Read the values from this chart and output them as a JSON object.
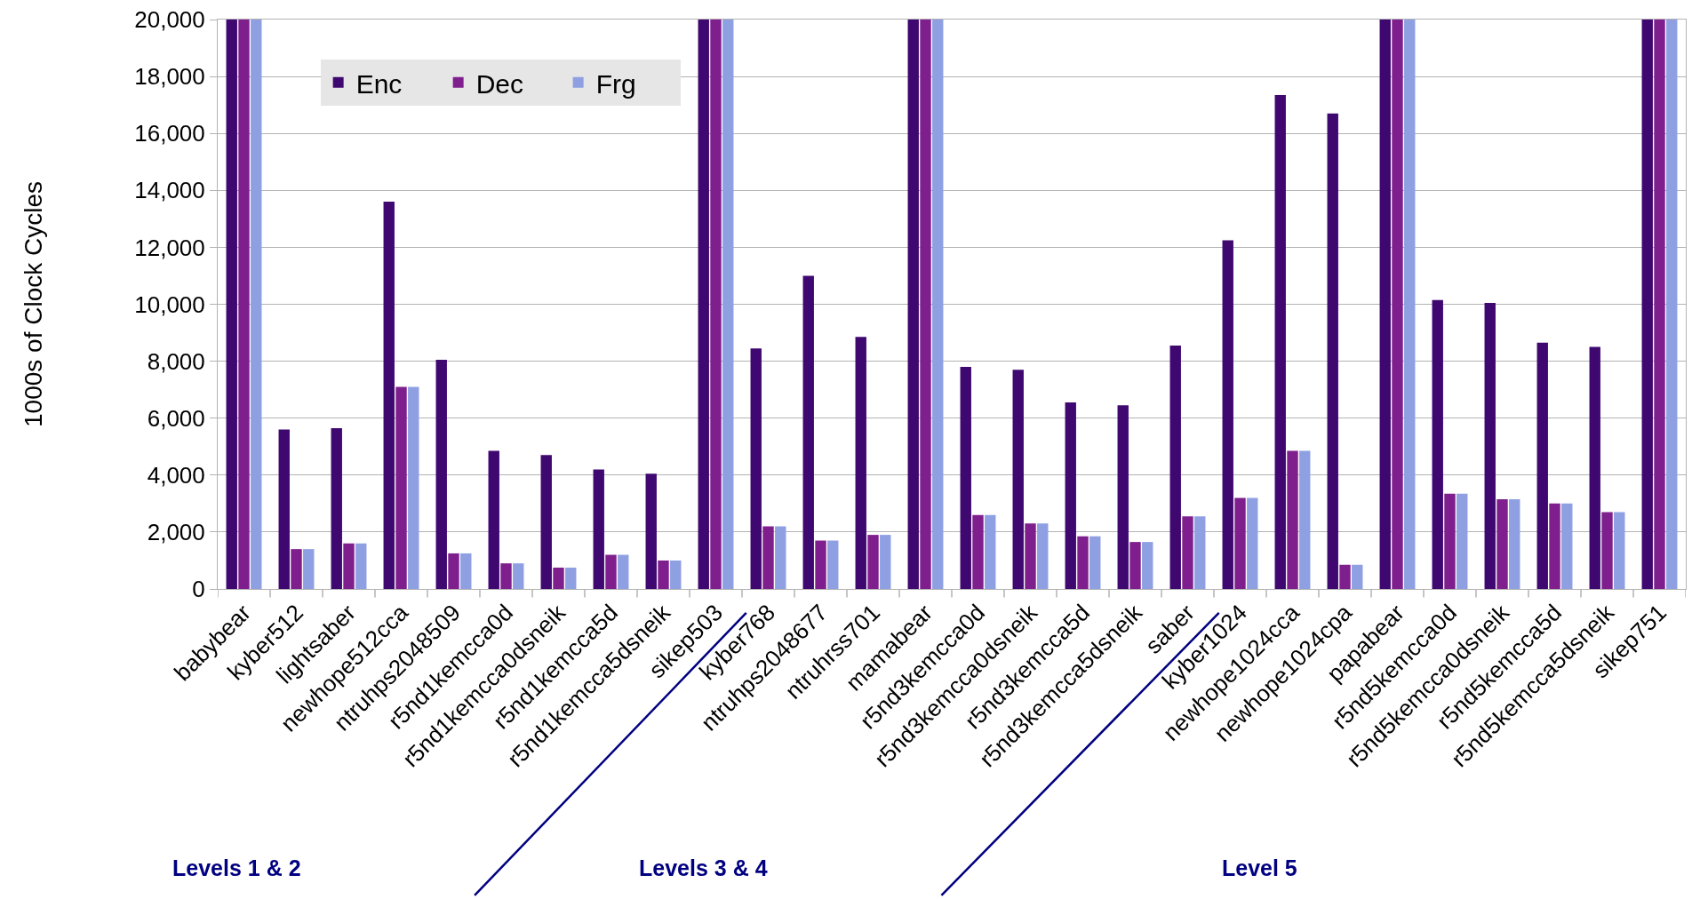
{
  "chart_data": {
    "type": "bar",
    "ylabel": "1000s of Clock Cycles",
    "categories": [
      "babybear",
      "kyber512",
      "lightsaber",
      "newhope512cca",
      "ntruhps2048509",
      "r5nd1kemcca0d",
      "r5nd1kemcca0dsneik",
      "r5nd1kemcca5d",
      "r5nd1kemcca5dsneik",
      "sikep503",
      "kyber768",
      "ntruhps2048677",
      "ntruhrss701",
      "mamabear",
      "r5nd3kemcca0d",
      "r5nd3kemcca0dsneik",
      "r5nd3kemcca5d",
      "r5nd3kemcca5dsneik",
      "saber",
      "kyber1024",
      "newhope1024cca",
      "newhope1024cpa",
      "papabear",
      "r5nd5kemcca0d",
      "r5nd5kemcca0dsneik",
      "r5nd5kemcca5d",
      "r5nd5kemcca5dsneik",
      "sikep751"
    ],
    "series": [
      {
        "name": "Enc",
        "color": "#3f0770",
        "values": [
          20000,
          5600,
          5650,
          13600,
          8050,
          4850,
          4700,
          4200,
          4050,
          20000,
          8450,
          11000,
          8850,
          20000,
          7800,
          7700,
          6550,
          6450,
          8550,
          12250,
          17350,
          16700,
          20000,
          10150,
          10050,
          8650,
          8500,
          20000
        ]
      },
      {
        "name": "Dec",
        "color": "#7f1f8e",
        "values": [
          20000,
          1400,
          1600,
          7100,
          1250,
          900,
          750,
          1200,
          1000,
          20000,
          2200,
          1700,
          1900,
          20000,
          2600,
          2300,
          1850,
          1650,
          2550,
          3200,
          4850,
          850,
          20000,
          3350,
          3150,
          3000,
          2700,
          20000
        ]
      },
      {
        "name": "Frg",
        "color": "#8ea0e2",
        "values": [
          20000,
          1400,
          1600,
          7100,
          1250,
          900,
          750,
          1200,
          1000,
          20000,
          2200,
          1700,
          1900,
          20000,
          2600,
          2300,
          1850,
          1650,
          2550,
          3200,
          4850,
          850,
          20000,
          3350,
          3150,
          3000,
          2700,
          20000
        ]
      }
    ],
    "ylim": [
      0,
      20000
    ],
    "yticks": [
      0,
      {
        "value": 2000,
        "label": "2,000"
      },
      {
        "value": 4000,
        "label": "4,000"
      },
      {
        "value": 6000,
        "label": "6,000"
      },
      {
        "value": 8000,
        "label": "8,000"
      },
      {
        "value": 10000,
        "label": "10,000"
      },
      {
        "value": 12000,
        "label": "12,000"
      },
      {
        "value": 14000,
        "label": "14,000"
      },
      {
        "value": 16000,
        "label": "16,000"
      },
      {
        "value": 18000,
        "label": "18,000"
      },
      {
        "value": 20000,
        "label": "20,000"
      }
    ],
    "grid": "y",
    "legend": "top left",
    "annotations": [
      "Levels 1 & 2",
      "Levels 3 & 4",
      "Level 5"
    ]
  }
}
